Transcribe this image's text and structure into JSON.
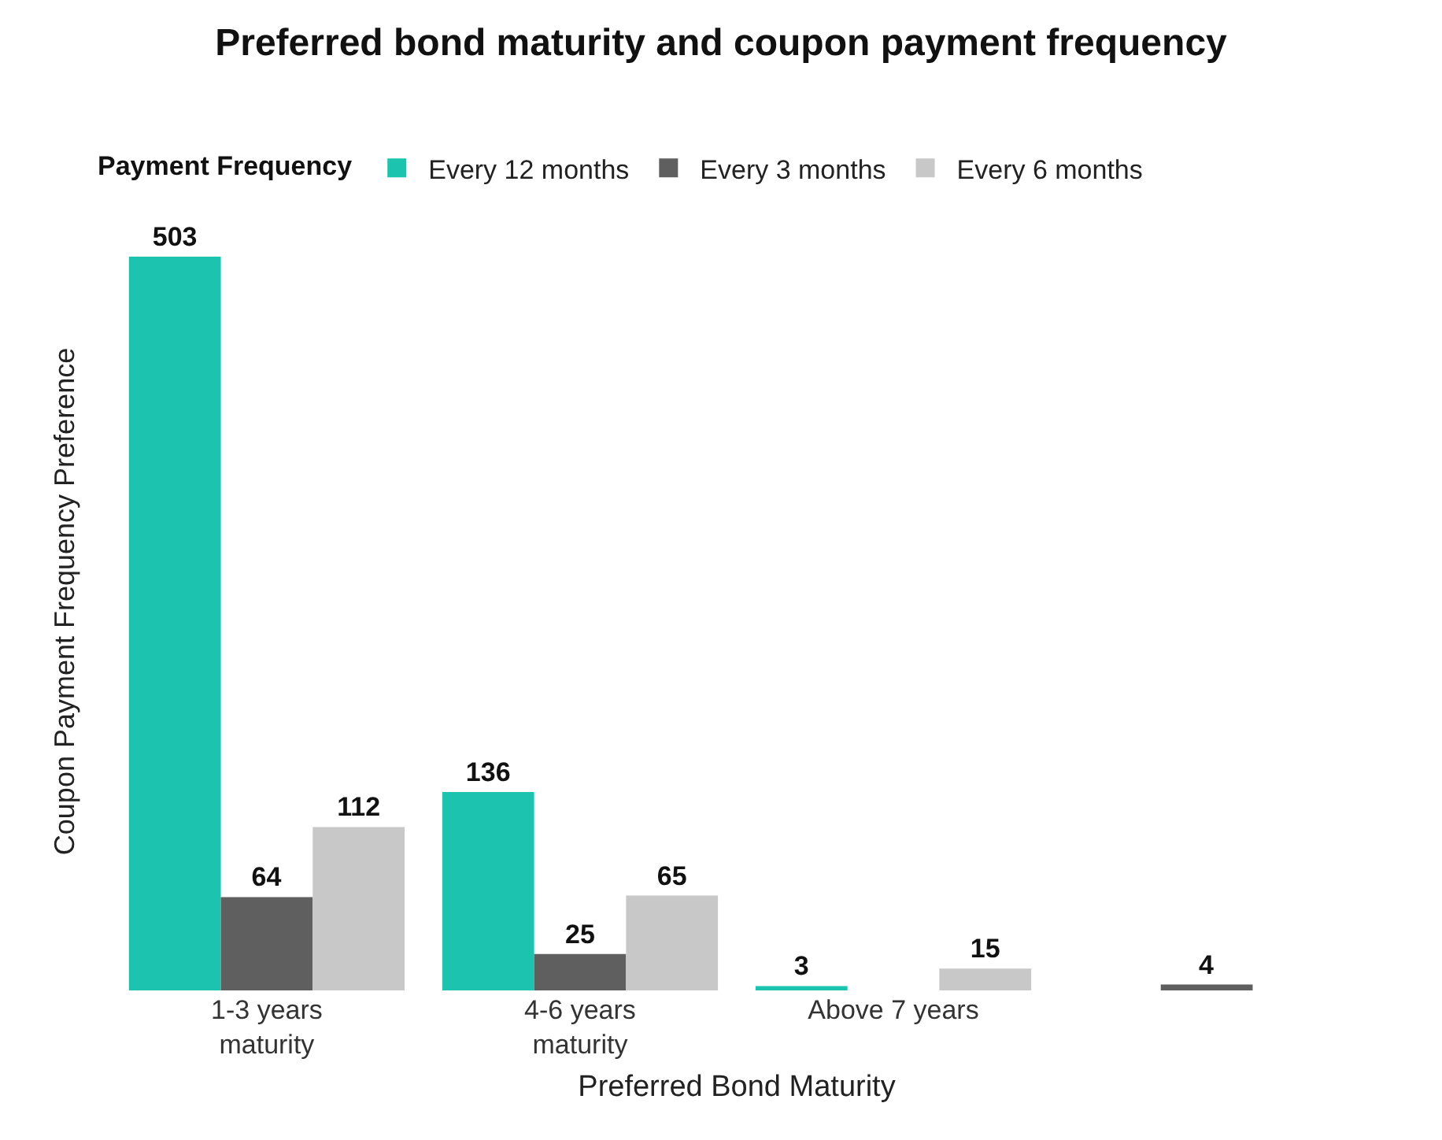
{
  "chart_data": {
    "type": "bar",
    "title": "Preferred bond maturity and coupon payment frequency",
    "xlabel": "Preferred Bond Maturity",
    "ylabel": "Coupon Payment Frequency Preference",
    "legend_title": "Payment Frequency",
    "legend": "top left",
    "categories": [
      "1-3 years\nmaturity",
      "4-6 years\nmaturity",
      "Above 7 years",
      null
    ],
    "series": [
      {
        "name": "Every 12 months",
        "color": "#1cc4b0",
        "values": [
          503,
          136,
          3,
          null
        ]
      },
      {
        "name": "Every 3 months",
        "color": "#5f5f5f",
        "values": [
          64,
          25,
          null,
          4
        ]
      },
      {
        "name": "Every 6 months",
        "color": "#c8c8c8",
        "values": [
          112,
          65,
          15,
          null
        ]
      }
    ],
    "data_labels": true,
    "grid": false
  }
}
